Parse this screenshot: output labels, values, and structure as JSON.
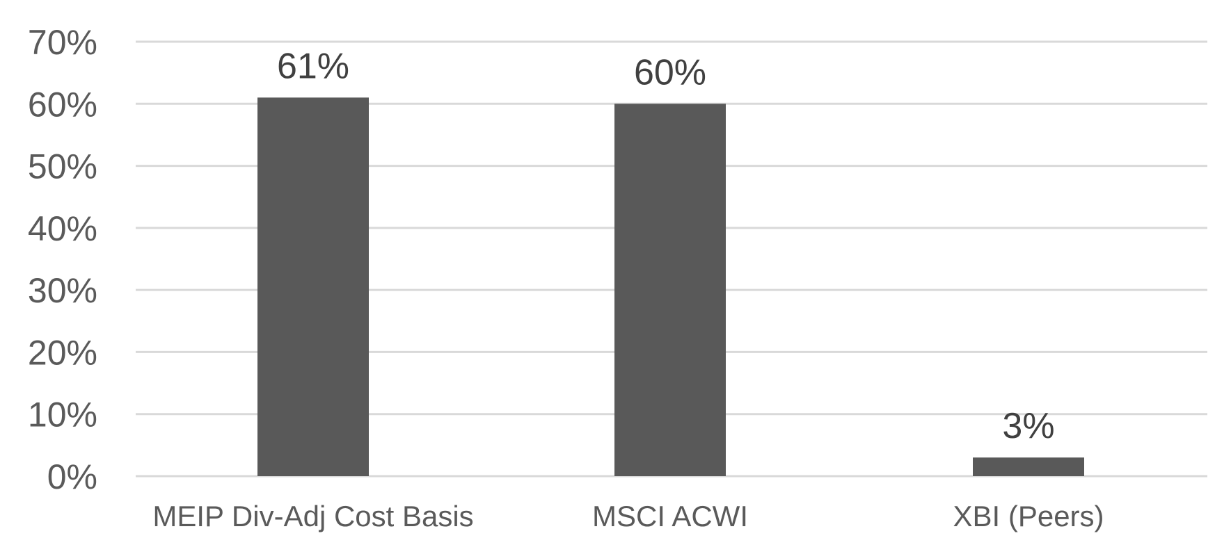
{
  "chart_data": {
    "type": "bar",
    "title": "",
    "xlabel": "",
    "ylabel": "",
    "categories": [
      "MEIP Div-Adj Cost Basis",
      "MSCI ACWI",
      "XBI (Peers)"
    ],
    "values": [
      61,
      60,
      3
    ],
    "data_labels": [
      "61%",
      "60%",
      "3%"
    ],
    "ylim": [
      0,
      70
    ],
    "y_ticks": [
      0,
      10,
      20,
      30,
      40,
      50,
      60,
      70
    ],
    "y_tick_labels": [
      "0%",
      "10%",
      "20%",
      "30%",
      "40%",
      "50%",
      "60%",
      "70%"
    ],
    "grid": true,
    "legend": "none",
    "colors": {
      "bar": "#595959",
      "grid": "#d9d9d9",
      "axis_text": "#5a5a5a",
      "data_label_text": "#404040"
    }
  }
}
